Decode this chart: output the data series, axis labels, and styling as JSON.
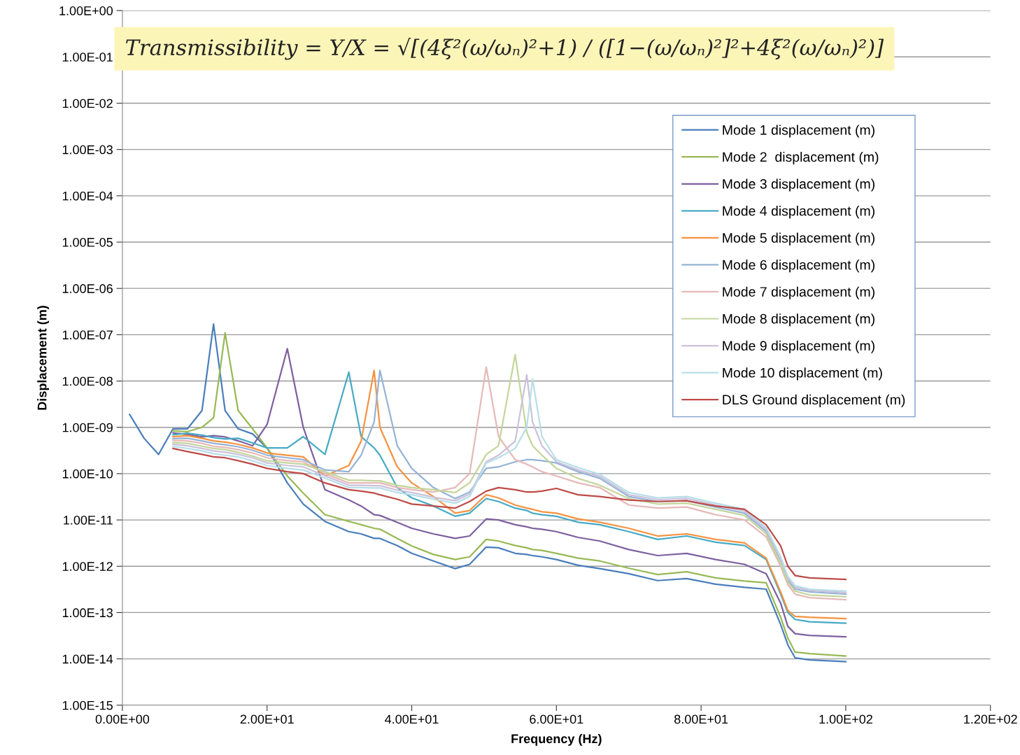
{
  "chart_data": {
    "type": "line",
    "xlabel": "Frequency (Hz)",
    "ylabel": "Displacement (m)",
    "log": "y",
    "xlim": [
      0,
      120
    ],
    "xticks": [
      {
        "value": 0,
        "label": "0.00E+00"
      },
      {
        "value": 20,
        "label": "2.00E+01"
      },
      {
        "value": 40,
        "label": "4.00E+01"
      },
      {
        "value": 60,
        "label": "6.00E+01"
      },
      {
        "value": 80,
        "label": "8.00E+01"
      },
      {
        "value": 100,
        "label": "1.00E+02"
      },
      {
        "value": 120,
        "label": "1.20E+02"
      }
    ],
    "ylim": [
      1e-15,
      1
    ],
    "yticks": [
      {
        "value": 1,
        "label": "1.00E+00"
      },
      {
        "value": 0.1,
        "label": "1.00E-01"
      },
      {
        "value": 0.01,
        "label": "1.00E-02"
      },
      {
        "value": 0.001,
        "label": "1.00E-03"
      },
      {
        "value": 0.0001,
        "label": "1.00E-04"
      },
      {
        "value": 1e-05,
        "label": "1.00E-05"
      },
      {
        "value": 1e-06,
        "label": "1.00E-06"
      },
      {
        "value": 1e-07,
        "label": "1.00E-07"
      },
      {
        "value": 1e-08,
        "label": "1.00E-08"
      },
      {
        "value": 1e-09,
        "label": "1.00E-09"
      },
      {
        "value": 1e-10,
        "label": "1.00E-10"
      },
      {
        "value": 1e-11,
        "label": "1.00E-11"
      },
      {
        "value": 1e-12,
        "label": "1.00E-12"
      },
      {
        "value": 1e-13,
        "label": "1.00E-13"
      },
      {
        "value": 1e-14,
        "label": "1.00E-14"
      },
      {
        "value": 1e-15,
        "label": "1.00E-15"
      }
    ],
    "grid": "y",
    "legend": "top right",
    "marker": "none",
    "line_style": "solid",
    "annotations": [
      "Transmissibility = Y/X = √[(4ξ²(ω/ωₙ)²+1) / ([1−(ω/ωₙ)²]²+4ξ²(ω/ωₙ)²)]"
    ],
    "x": [
      1,
      3,
      5,
      7,
      9,
      11,
      12.6,
      14.2,
      16,
      18,
      20,
      22.8,
      25,
      28,
      31.3,
      33,
      34.8,
      35.6,
      38,
      40,
      43,
      46,
      48,
      50.3,
      52,
      54.3,
      55.9,
      56.7,
      58,
      60,
      63,
      66,
      70,
      74,
      78,
      82,
      86,
      89,
      91,
      92,
      93,
      95,
      100
    ],
    "series": [
      {
        "name": "Mode 1 displacement (m)",
        "color": "#4a7ebb",
        "values": [
          1.9e-09,
          5.8e-10,
          2.6e-10,
          9.3e-10,
          9.3e-10,
          2.3e-09,
          1.7e-07,
          2.3e-09,
          9.3e-10,
          7.2e-10,
          3.6e-10,
          6.3e-11,
          2.2e-11,
          9.3e-12,
          5.6e-12,
          5e-12,
          4e-12,
          4e-12,
          2.8e-12,
          1.9e-12,
          1.3e-12,
          8.9e-13,
          1.1e-12,
          2.6e-12,
          2.5e-12,
          1.9e-12,
          1.8e-12,
          1.7e-12,
          1.6e-12,
          1.4e-12,
          1.05e-12,
          8.9e-13,
          6.9e-13,
          4.9e-13,
          5.4e-13,
          4.1e-13,
          3.5e-13,
          3.2e-13,
          5.5e-14,
          2e-14,
          1.05e-14,
          9.5e-15,
          8.7e-15
        ]
      },
      {
        "name": "Mode 2  displacement (m)",
        "color": "#98b954",
        "values": [
          null,
          null,
          null,
          8.4e-10,
          8.1e-10,
          1e-09,
          1.6e-09,
          1.1e-07,
          2.3e-09,
          9.3e-10,
          3.6e-10,
          8.9e-11,
          3.8e-11,
          1.3e-11,
          9.3e-12,
          7.9e-12,
          6.6e-12,
          6.3e-12,
          4e-12,
          2.75e-12,
          1.8e-12,
          1.4e-12,
          1.6e-12,
          3.8e-12,
          3.5e-12,
          2.8e-12,
          2.5e-12,
          2.3e-12,
          2.2e-12,
          1.9e-12,
          1.5e-12,
          1.3e-12,
          9.1e-13,
          6.6e-13,
          7.6e-13,
          5.6e-13,
          4.8e-13,
          4.4e-13,
          7.9e-14,
          2.8e-14,
          1.4e-14,
          1.3e-14,
          1.15e-14
        ]
      },
      {
        "name": "Mode 3 displacement (m)",
        "color": "#7d60a0",
        "values": [
          null,
          null,
          null,
          7.6e-10,
          7e-10,
          6.2e-10,
          6.6e-10,
          6.2e-10,
          5.1e-10,
          4e-10,
          1.15e-09,
          5e-08,
          1e-09,
          4.5e-11,
          2.7e-11,
          2e-11,
          1.3e-11,
          1.25e-11,
          8.9e-12,
          6.6e-12,
          5e-12,
          4e-12,
          4.5e-12,
          1.05e-11,
          1e-11,
          7.9e-12,
          7.1e-12,
          6.6e-12,
          6.3e-12,
          5.6e-12,
          4.2e-12,
          3.5e-12,
          2.3e-12,
          1.7e-12,
          1.9e-12,
          1.4e-12,
          1.1e-12,
          6.9e-13,
          1.6e-13,
          5e-14,
          3.5e-14,
          3.2e-14,
          3e-14
        ]
      },
      {
        "name": "Mode 4 displacement (m)",
        "color": "#46aac5",
        "values": [
          null,
          null,
          null,
          6.9e-10,
          7.5e-10,
          6.8e-10,
          6e-10,
          5.6e-10,
          5.8e-10,
          4.6e-10,
          3.6e-10,
          3.6e-10,
          6.3e-10,
          2.6e-10,
          1.55e-08,
          6.3e-10,
          3.6e-10,
          2.5e-10,
          5e-11,
          3e-11,
          2e-11,
          1.2e-11,
          1.4e-11,
          2.9e-11,
          2.5e-11,
          1.8e-11,
          1.6e-11,
          1.4e-11,
          1.3e-11,
          1.2e-11,
          8.9e-12,
          7.9e-12,
          5.6e-12,
          3.8e-12,
          4.5e-12,
          3.3e-12,
          2.8e-12,
          1.4e-12,
          2.5e-13,
          1e-13,
          7.1e-14,
          6.3e-14,
          5.9e-14
        ]
      },
      {
        "name": "Mode 5 displacement (m)",
        "color": "#f69240",
        "values": [
          null,
          null,
          null,
          6.3e-10,
          6.6e-10,
          5.8e-10,
          5.1e-10,
          4.8e-10,
          4.3e-10,
          3.6e-10,
          2.8e-10,
          2.5e-10,
          2.3e-10,
          8.9e-11,
          1.5e-10,
          5e-10,
          1.7e-08,
          1e-09,
          1.4e-10,
          6.3e-11,
          3.2e-11,
          1.4e-11,
          1.6e-11,
          3.5e-11,
          3e-11,
          2.1e-11,
          1.8e-11,
          1.7e-11,
          1.5e-11,
          1.4e-11,
          1.05e-11,
          8.9e-12,
          6.6e-12,
          4.5e-12,
          5e-12,
          3.8e-12,
          3.2e-12,
          1.5e-12,
          2.8e-13,
          1.1e-13,
          8.3e-14,
          7.9e-14,
          7.4e-14
        ]
      },
      {
        "name": "Mode 6 displacement (m)",
        "color": "#95b3d7",
        "values": [
          null,
          null,
          null,
          5.7e-10,
          5.8e-10,
          5.1e-10,
          4.5e-10,
          4.2e-10,
          3.8e-10,
          3.2e-10,
          2.5e-10,
          2.2e-10,
          2e-10,
          1.2e-10,
          1.1e-10,
          2.5e-10,
          1.3e-09,
          1.7e-08,
          4e-10,
          1.3e-10,
          5e-11,
          2.9e-11,
          4e-11,
          1.3e-10,
          1.4e-10,
          1.8e-10,
          2e-10,
          2e-10,
          1.9e-10,
          1.7e-10,
          1.1e-10,
          7.9e-11,
          3.2e-11,
          2.5e-11,
          2.6e-11,
          1.9e-11,
          1.4e-11,
          5.6e-12,
          1.3e-12,
          5e-13,
          3.2e-13,
          2.8e-13,
          2.5e-13
        ]
      },
      {
        "name": "Mode 7 displacement (m)",
        "color": "#e6b9b8",
        "values": [
          null,
          null,
          null,
          5.2e-10,
          5.1e-10,
          4.5e-10,
          3.9e-10,
          3.7e-10,
          3.3e-10,
          2.8e-10,
          2.2e-10,
          1.9e-10,
          1.8e-10,
          1e-10,
          6.3e-11,
          6.3e-11,
          6.3e-11,
          6.3e-11,
          5e-11,
          4.5e-11,
          4e-11,
          5e-11,
          1e-10,
          2e-08,
          6.3e-10,
          2e-10,
          1.6e-10,
          1.4e-10,
          1.1e-10,
          8.9e-11,
          6.3e-11,
          5e-11,
          2.1e-11,
          1.8e-11,
          1.9e-11,
          1.3e-11,
          1e-11,
          4.3e-12,
          1e-12,
          4e-13,
          2.5e-13,
          2.1e-13,
          1.9e-13
        ]
      },
      {
        "name": "Mode 8 displacement (m)",
        "color": "#c3d69b",
        "values": [
          null,
          null,
          null,
          4.7e-10,
          4.5e-10,
          3.9e-10,
          3.5e-10,
          3.3e-10,
          2.9e-10,
          2.4e-10,
          1.9e-10,
          1.7e-10,
          1.6e-10,
          1.1e-10,
          7.2e-11,
          7.2e-11,
          7e-11,
          7e-11,
          5.6e-11,
          5e-11,
          4.5e-11,
          3.9e-11,
          6.3e-11,
          2.6e-10,
          4e-10,
          3.7e-08,
          7.9e-10,
          4e-10,
          2.5e-10,
          1.3e-10,
          7.9e-11,
          5.6e-11,
          2.9e-11,
          2.2e-11,
          2.3e-11,
          1.7e-11,
          1.25e-11,
          5e-12,
          1.15e-12,
          4.5e-13,
          2.9e-13,
          2.4e-13,
          2.2e-13
        ]
      },
      {
        "name": "Mode 9 displacement (m)",
        "color": "#ccc1da",
        "values": [
          null,
          null,
          null,
          4.3e-10,
          4e-10,
          3.5e-10,
          3.1e-10,
          2.9e-10,
          2.6e-10,
          2.2e-10,
          1.7e-10,
          1.5e-10,
          1.4e-10,
          9e-11,
          5.6e-11,
          5.6e-11,
          5.5e-11,
          5.5e-11,
          4.4e-11,
          3.9e-11,
          3.1e-11,
          2.6e-11,
          3.6e-11,
          1.8e-10,
          2.5e-10,
          5e-10,
          1.35e-08,
          1.3e-09,
          4e-10,
          1.8e-10,
          1.2e-10,
          8.7e-11,
          3.5e-11,
          2.75e-11,
          2.9e-11,
          2.1e-11,
          1.55e-11,
          6.2e-12,
          1.45e-12,
          5.5e-13,
          3.5e-13,
          3e-13,
          2.7e-13
        ]
      },
      {
        "name": "Mode 10 displacement (m)",
        "color": "#b7dee8",
        "values": [
          null,
          null,
          null,
          3.9e-10,
          3.5e-10,
          3.1e-10,
          2.7e-10,
          2.5e-10,
          2.3e-10,
          1.9e-10,
          1.5e-10,
          1.3e-10,
          1.2e-10,
          8e-11,
          5e-11,
          5e-11,
          4.9e-11,
          4.9e-11,
          3.9e-11,
          3.5e-11,
          2.8e-11,
          2.3e-11,
          3.2e-11,
          1.7e-10,
          2.2e-10,
          3.5e-10,
          1e-09,
          1.1e-08,
          6.3e-10,
          2e-10,
          1.35e-10,
          9.6e-11,
          3.9e-11,
          3e-11,
          3.2e-11,
          2.3e-11,
          1.7e-11,
          6.8e-12,
          1.6e-12,
          6e-13,
          3.8e-13,
          3.2e-13,
          2.9e-13
        ]
      },
      {
        "name": "DLS Ground displacement (m)",
        "color": "#be4b48",
        "values": [
          null,
          null,
          null,
          3.5e-10,
          3e-10,
          2.6e-10,
          2.3e-10,
          2.2e-10,
          1.9e-10,
          1.6e-10,
          1.3e-10,
          1.1e-10,
          1e-10,
          6.3e-11,
          4.5e-11,
          4.2e-11,
          3.8e-11,
          3.5e-11,
          2.8e-11,
          2.2e-11,
          2e-11,
          1.8e-11,
          2.5e-11,
          4.2e-11,
          5e-11,
          4.5e-11,
          4e-11,
          4e-11,
          4.2e-11,
          4.8e-11,
          3.5e-11,
          3.2e-11,
          2.7e-11,
          2.5e-11,
          2.6e-11,
          2e-11,
          1.7e-11,
          7.9e-12,
          2.75e-12,
          1e-12,
          6.3e-13,
          5.6e-13,
          5.2e-13
        ]
      }
    ]
  }
}
